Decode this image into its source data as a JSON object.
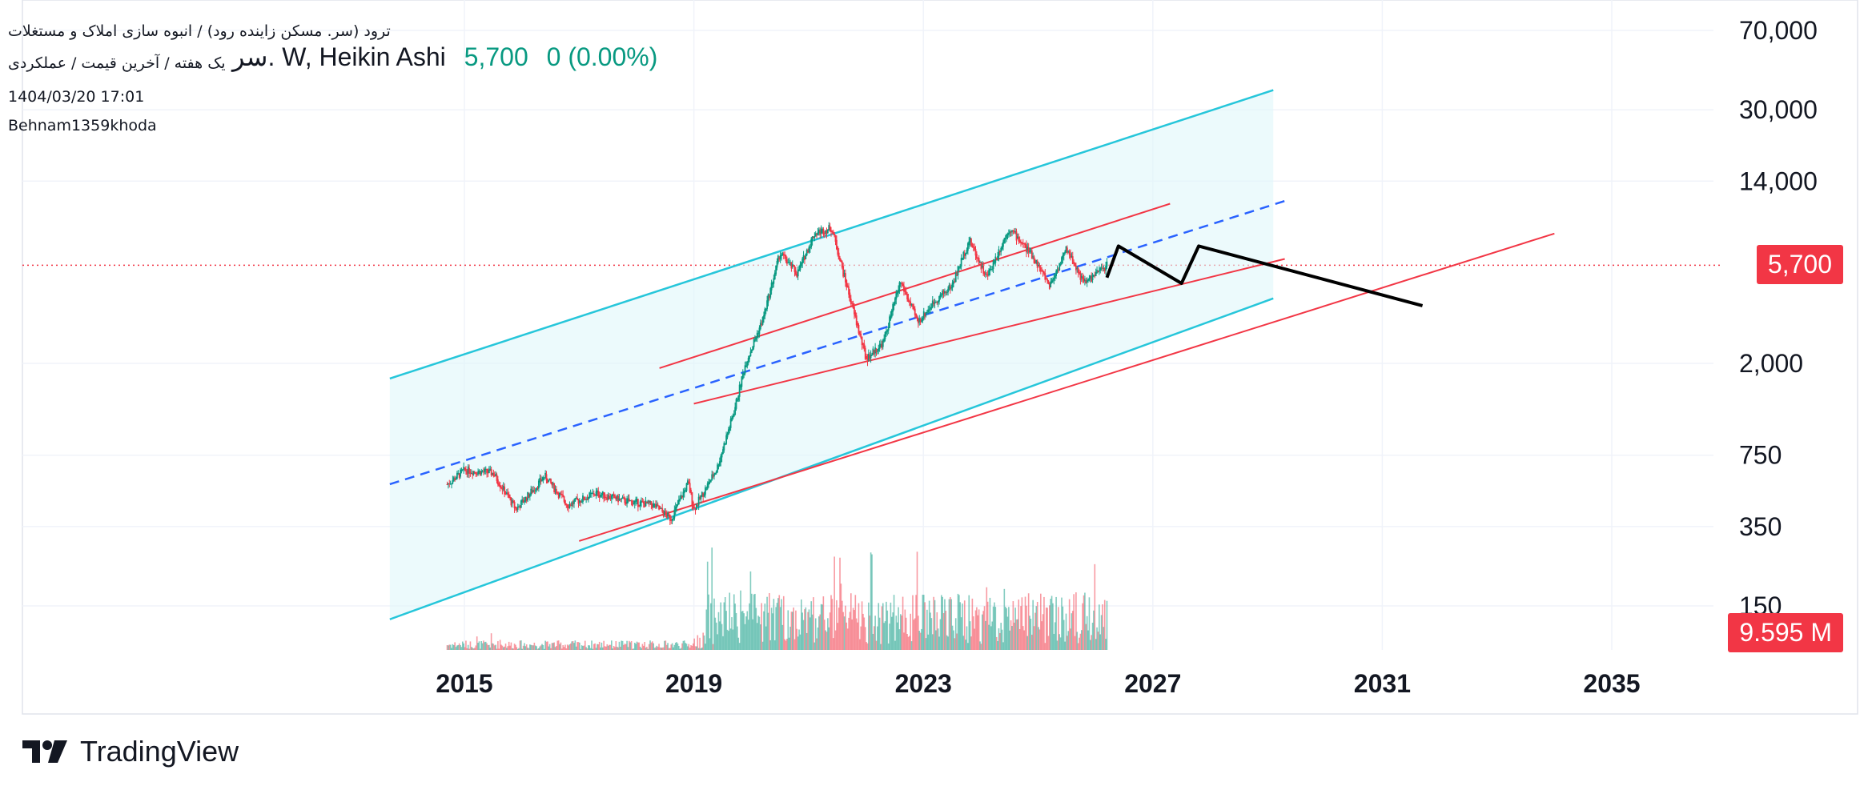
{
  "header": {
    "symbol_full": "ترود (سر. مسکن زاینده رود) / انبوه سازی املاک و مستغلات",
    "subtitle": "یک هفته / آخرین قیمت / عملکردی",
    "datetime": "1404/03/20 17:01",
    "author": "Behnam1359khoda",
    "title": "سر. W, Heikin Ashi",
    "price_text": "5,700",
    "change_text": "0 (0.00%)"
  },
  "badges": {
    "price": "5,700",
    "volume": "9.595 M"
  },
  "brand": {
    "name": "TradingView",
    "icon": "tradingview-logo-icon"
  },
  "colors": {
    "up": "#089981",
    "down": "#f23645",
    "channel_outer": "#26c6da",
    "channel_fill": "#e0f7fa",
    "median_dash": "#2962ff",
    "inner_red": "#f23645",
    "projection": "#000000"
  },
  "chart_data": {
    "type": "candlestick",
    "style": "Heikin Ashi",
    "timeframe": "W",
    "y_scale": "log",
    "y_ticks": [
      "70,000",
      "30,000",
      "14,000",
      "2,000",
      "750",
      "350",
      "150"
    ],
    "x_ticks": [
      "2015",
      "2019",
      "2023",
      "2027",
      "2031",
      "2035"
    ],
    "last_price": 5700,
    "last_volume": "9.595 M",
    "price_path": [
      {
        "year": 2014.7,
        "price": 550
      },
      {
        "year": 2015.0,
        "price": 640
      },
      {
        "year": 2015.5,
        "price": 620
      },
      {
        "year": 2015.9,
        "price": 420
      },
      {
        "year": 2016.4,
        "price": 600
      },
      {
        "year": 2016.8,
        "price": 440
      },
      {
        "year": 2017.3,
        "price": 500
      },
      {
        "year": 2017.8,
        "price": 460
      },
      {
        "year": 2018.3,
        "price": 440
      },
      {
        "year": 2018.6,
        "price": 380
      },
      {
        "year": 2018.9,
        "price": 560
      },
      {
        "year": 2019.0,
        "price": 420
      },
      {
        "year": 2019.4,
        "price": 650
      },
      {
        "year": 2019.7,
        "price": 1200
      },
      {
        "year": 2019.9,
        "price": 2000
      },
      {
        "year": 2020.2,
        "price": 3200
      },
      {
        "year": 2020.5,
        "price": 6500
      },
      {
        "year": 2020.8,
        "price": 5200
      },
      {
        "year": 2021.1,
        "price": 8000
      },
      {
        "year": 2021.4,
        "price": 8500
      },
      {
        "year": 2021.7,
        "price": 4200
      },
      {
        "year": 2022.0,
        "price": 2100
      },
      {
        "year": 2022.3,
        "price": 2500
      },
      {
        "year": 2022.6,
        "price": 4800
      },
      {
        "year": 2022.9,
        "price": 3100
      },
      {
        "year": 2023.2,
        "price": 3900
      },
      {
        "year": 2023.5,
        "price": 4600
      },
      {
        "year": 2023.8,
        "price": 7500
      },
      {
        "year": 2024.1,
        "price": 5000
      },
      {
        "year": 2024.5,
        "price": 8500
      },
      {
        "year": 2024.9,
        "price": 6300
      },
      {
        "year": 2025.2,
        "price": 4600
      },
      {
        "year": 2025.5,
        "price": 6800
      },
      {
        "year": 2025.8,
        "price": 4700
      },
      {
        "year": 2026.2,
        "price": 5700
      }
    ],
    "channel": {
      "start_year": 2013.7,
      "end_year": 2029.1,
      "upper_start": 1700,
      "upper_end": 37000,
      "lower_start": 130,
      "lower_end": 4000,
      "median_start": 550,
      "median_end": 11500
    },
    "inner_lines": [
      {
        "start_year": 2018.4,
        "end_year": 2027.3,
        "start": 1900,
        "end": 11000
      },
      {
        "start_year": 2019.0,
        "end_year": 2029.3,
        "start": 1300,
        "end": 6100
      },
      {
        "start_year": 2017.0,
        "end_year": 2034.0,
        "start": 300,
        "end": 8000
      }
    ],
    "projection": [
      {
        "year": 2026.2,
        "price": 5000
      },
      {
        "year": 2026.4,
        "price": 7000
      },
      {
        "year": 2027.5,
        "price": 4700
      },
      {
        "year": 2027.8,
        "price": 7000
      },
      {
        "year": 2031.7,
        "price": 3700
      }
    ],
    "volume_range": [
      2014.7,
      2026.2
    ]
  }
}
